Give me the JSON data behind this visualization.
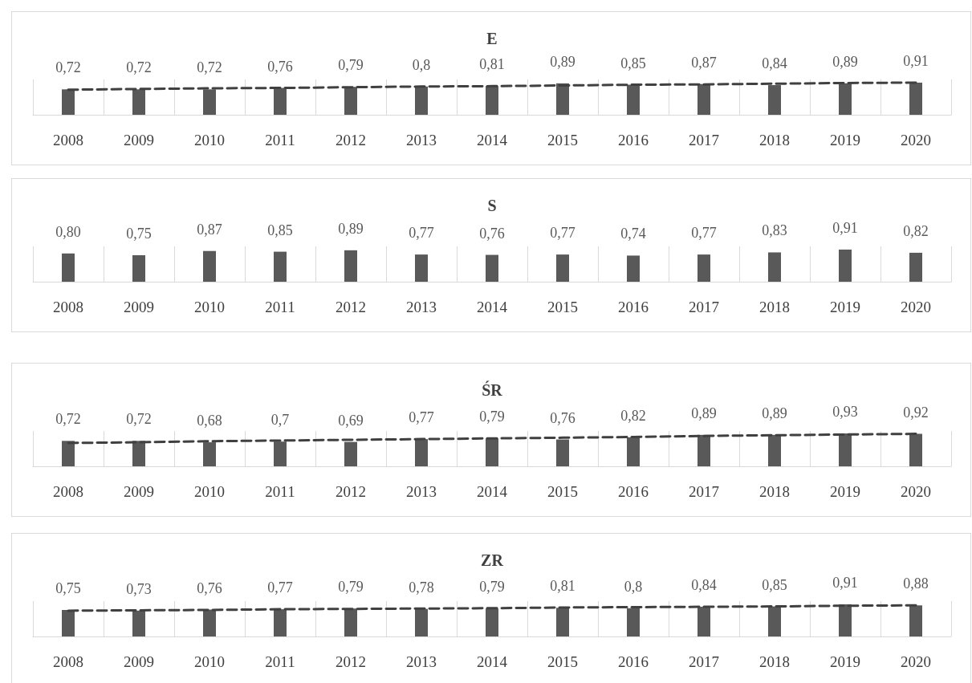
{
  "chart_data": [
    {
      "type": "bar",
      "title": "E",
      "categories": [
        "2008",
        "2009",
        "2010",
        "2011",
        "2012",
        "2013",
        "2014",
        "2015",
        "2016",
        "2017",
        "2018",
        "2019",
        "2020"
      ],
      "tick_labels": "x",
      "grid": "x",
      "series": [
        {
          "color": "#595959",
          "values": [
            0.72,
            0.72,
            0.72,
            0.76,
            0.79,
            0.8,
            0.81,
            0.89,
            0.85,
            0.87,
            0.84,
            0.89,
            0.91
          ],
          "value_labels": [
            "0,72",
            "0,72",
            "0,72",
            "0,76",
            "0,79",
            "0,8",
            "0,81",
            "0,89",
            "0,85",
            "0,87",
            "0,84",
            "0,89",
            "0,91"
          ]
        },
        {
          "type": "line",
          "color": "#404040",
          "line_style": "dashed",
          "marker": "none",
          "values": [
            0.71,
            0.73,
            0.75,
            0.76,
            0.78,
            0.8,
            0.81,
            0.83,
            0.85,
            0.86,
            0.88,
            0.9,
            0.91
          ]
        }
      ]
    },
    {
      "type": "bar",
      "title": "S",
      "categories": [
        "2008",
        "2009",
        "2010",
        "2011",
        "2012",
        "2013",
        "2014",
        "2015",
        "2016",
        "2017",
        "2018",
        "2019",
        "2020"
      ],
      "tick_labels": "x",
      "grid": "x",
      "series": [
        {
          "color": "#595959",
          "values": [
            0.8,
            0.75,
            0.87,
            0.85,
            0.89,
            0.77,
            0.76,
            0.77,
            0.74,
            0.77,
            0.83,
            0.91,
            0.82
          ],
          "value_labels": [
            "0,80",
            "0,75",
            "0,87",
            "0,85",
            "0,89",
            "0,77",
            "0,76",
            "0,77",
            "0,74",
            "0,77",
            "0,83",
            "0,91",
            "0,82"
          ]
        }
      ]
    },
    {
      "type": "bar",
      "title": "ŚR",
      "categories": [
        "2008",
        "2009",
        "2010",
        "2011",
        "2012",
        "2013",
        "2014",
        "2015",
        "2016",
        "2017",
        "2018",
        "2019",
        "2020"
      ],
      "tick_labels": "x",
      "grid": "x",
      "series": [
        {
          "color": "#595959",
          "values": [
            0.72,
            0.72,
            0.68,
            0.7,
            0.69,
            0.77,
            0.79,
            0.76,
            0.82,
            0.89,
            0.89,
            0.93,
            0.92
          ],
          "value_labels": [
            "0,72",
            "0,72",
            "0,68",
            "0,7",
            "0,69",
            "0,77",
            "0,79",
            "0,76",
            "0,82",
            "0,89",
            "0,89",
            "0,93",
            "0,92"
          ]
        },
        {
          "type": "line",
          "color": "#404040",
          "line_style": "dashed",
          "marker": "none",
          "values": [
            0.66,
            0.68,
            0.71,
            0.73,
            0.75,
            0.77,
            0.79,
            0.81,
            0.83,
            0.86,
            0.88,
            0.9,
            0.92
          ]
        }
      ]
    },
    {
      "type": "bar",
      "title": "ZR",
      "categories": [
        "2008",
        "2009",
        "2010",
        "2011",
        "2012",
        "2013",
        "2014",
        "2015",
        "2016",
        "2017",
        "2018",
        "2019",
        "2020"
      ],
      "tick_labels": "x",
      "grid": "x",
      "series": [
        {
          "color": "#595959",
          "values": [
            0.75,
            0.73,
            0.76,
            0.77,
            0.79,
            0.78,
            0.79,
            0.81,
            0.8,
            0.84,
            0.85,
            0.91,
            0.88
          ],
          "value_labels": [
            "0,75",
            "0,73",
            "0,76",
            "0,77",
            "0,79",
            "0,78",
            "0,79",
            "0,81",
            "0,8",
            "0,84",
            "0,85",
            "0,91",
            "0,88"
          ]
        },
        {
          "type": "line",
          "color": "#404040",
          "line_style": "dashed",
          "marker": "none",
          "values": [
            0.73,
            0.74,
            0.75,
            0.77,
            0.78,
            0.79,
            0.8,
            0.82,
            0.83,
            0.84,
            0.85,
            0.87,
            0.88
          ]
        }
      ]
    }
  ]
}
